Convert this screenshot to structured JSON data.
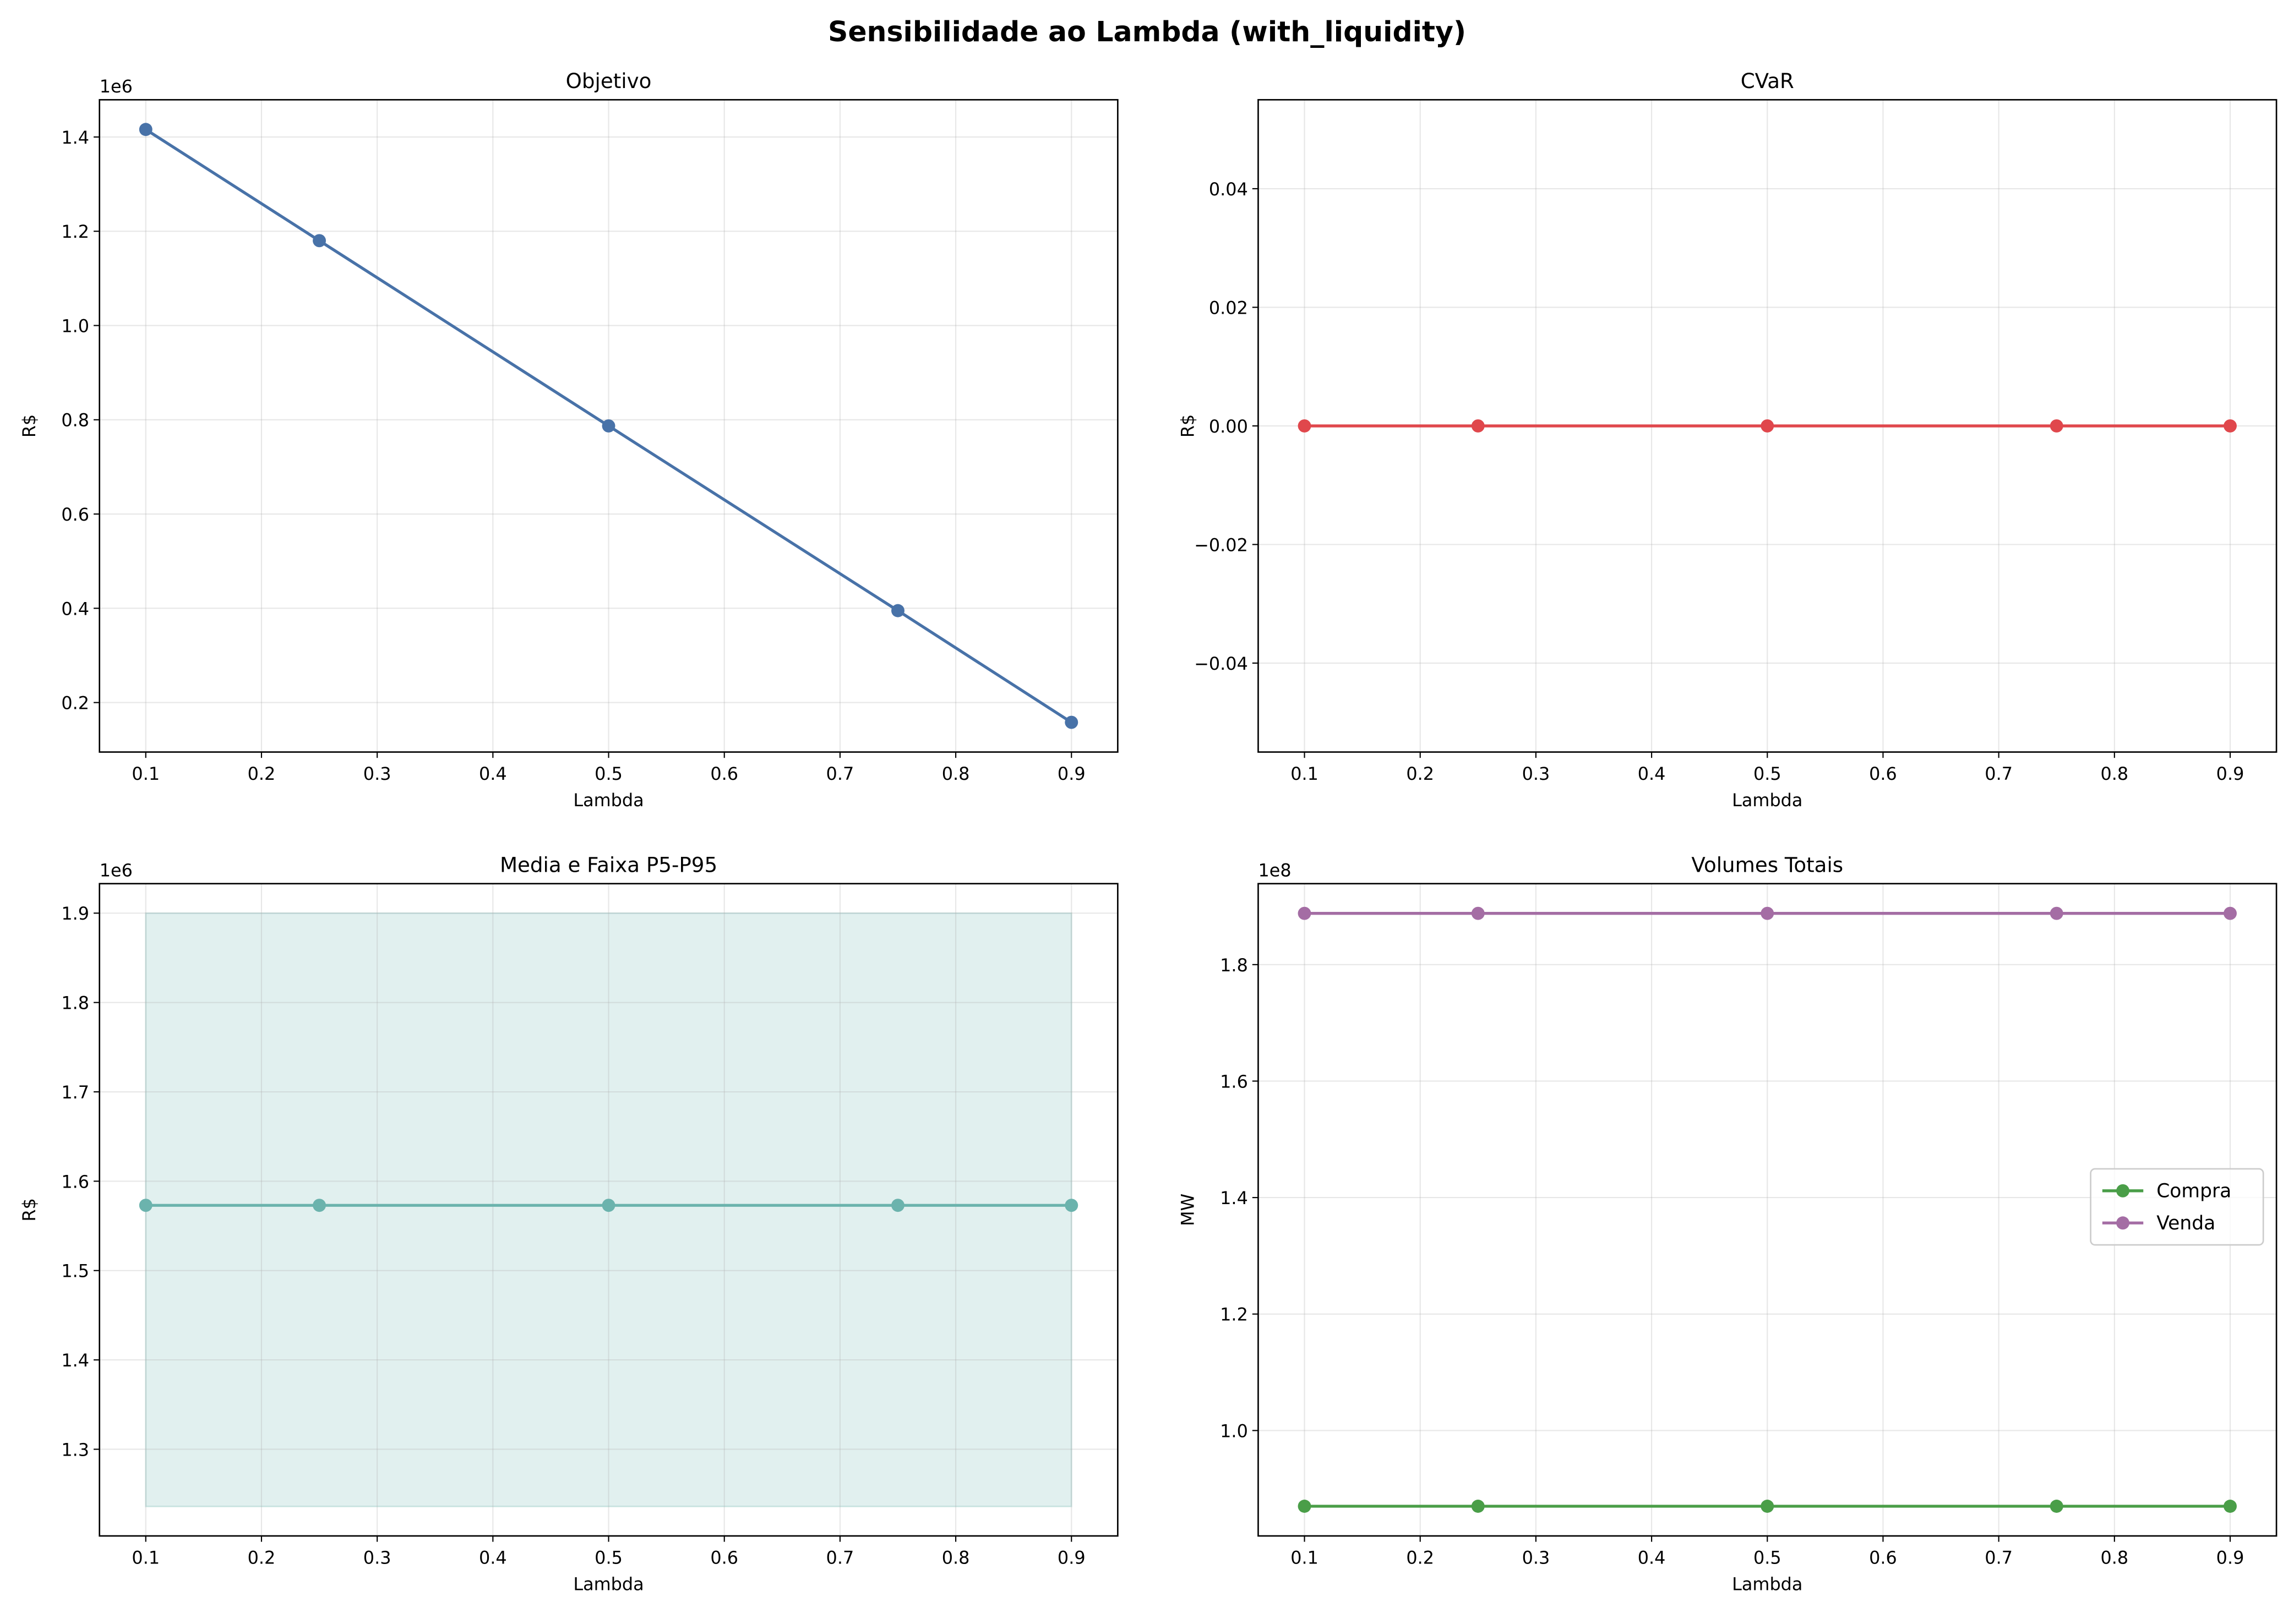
{
  "suptitle": "Sensibilidade ao Lambda (with_liquidity)",
  "chart_data": [
    {
      "type": "line",
      "title": "Objetivo",
      "xlabel": "Lambda",
      "ylabel": "R$",
      "offset_text": "1e6",
      "x": [
        0.1,
        0.25,
        0.5,
        0.75,
        0.9
      ],
      "series": [
        {
          "values": [
            1.416,
            1.18,
            0.787,
            0.395,
            0.158
          ],
          "color": "#4872a8"
        }
      ],
      "xlim": [
        0.06,
        0.94
      ],
      "ylim": [
        0.095,
        1.479
      ],
      "xticks": [
        "0.1",
        "0.2",
        "0.3",
        "0.4",
        "0.5",
        "0.6",
        "0.7",
        "0.8",
        "0.9"
      ],
      "yticks": [
        "0.2",
        "0.4",
        "0.6",
        "0.8",
        "1.0",
        "1.2",
        "1.4"
      ],
      "grid": true
    },
    {
      "type": "line",
      "title": "CVaR",
      "xlabel": "Lambda",
      "ylabel": "R$",
      "x": [
        0.1,
        0.25,
        0.5,
        0.75,
        0.9
      ],
      "series": [
        {
          "values": [
            0,
            0,
            0,
            0,
            0
          ],
          "color": "#e0474c"
        }
      ],
      "xlim": [
        0.06,
        0.94
      ],
      "ylim": [
        -0.055,
        0.055
      ],
      "xticks": [
        "0.1",
        "0.2",
        "0.3",
        "0.4",
        "0.5",
        "0.6",
        "0.7",
        "0.8",
        "0.9"
      ],
      "yticks": [
        "−0.04",
        "−0.02",
        "0.00",
        "0.02",
        "0.04"
      ],
      "grid": true
    },
    {
      "type": "area",
      "title": "Media e Faixa P5-P95",
      "xlabel": "Lambda",
      "ylabel": "R$",
      "offset_text": "1e6",
      "x": [
        0.1,
        0.25,
        0.5,
        0.75,
        0.9
      ],
      "series": [
        {
          "values": [
            1.573,
            1.573,
            1.573,
            1.573,
            1.573
          ],
          "color": "#6bb3ad"
        }
      ],
      "band": {
        "lower": [
          1.236,
          1.236,
          1.236,
          1.236,
          1.236
        ],
        "upper": [
          1.9,
          1.9,
          1.9,
          1.9,
          1.9
        ],
        "color": "#6bb3ad"
      },
      "xlim": [
        0.06,
        0.94
      ],
      "ylim": [
        1.203,
        1.933
      ],
      "xticks": [
        "0.1",
        "0.2",
        "0.3",
        "0.4",
        "0.5",
        "0.6",
        "0.7",
        "0.8",
        "0.9"
      ],
      "yticks": [
        "1.3",
        "1.4",
        "1.5",
        "1.6",
        "1.7",
        "1.8",
        "1.9"
      ],
      "grid": true
    },
    {
      "type": "line",
      "title": "Volumes Totais",
      "xlabel": "Lambda",
      "ylabel": "MW",
      "offset_text": "1e8",
      "x": [
        0.1,
        0.25,
        0.5,
        0.75,
        0.9
      ],
      "series": [
        {
          "name": "Compra",
          "values": [
            0.87,
            0.87,
            0.87,
            0.87,
            0.87
          ],
          "color": "#4a9e48"
        },
        {
          "name": "Venda",
          "values": [
            1.888,
            1.888,
            1.888,
            1.888,
            1.888
          ],
          "color": "#a46da4"
        }
      ],
      "legend": "center-right",
      "xlim": [
        0.06,
        0.94
      ],
      "ylim": [
        0.819,
        1.939
      ],
      "xticks": [
        "0.1",
        "0.2",
        "0.3",
        "0.4",
        "0.5",
        "0.6",
        "0.7",
        "0.8",
        "0.9"
      ],
      "yticks": [
        "1.0",
        "1.2",
        "1.4",
        "1.6",
        "1.8"
      ],
      "grid": true
    }
  ]
}
